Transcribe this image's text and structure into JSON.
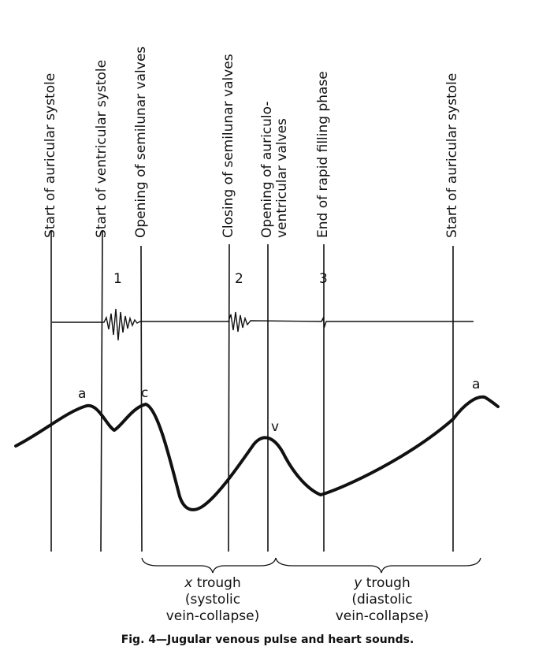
{
  "events": {
    "start_auricular_systole_1": "Start of auricular systole",
    "start_ventricular_systole": "Start of ventricular systole",
    "opening_semilunar": "Opening of semilunar valves",
    "closing_semilunar": "Closing of semilunar valves",
    "opening_av_line1": "Opening of auriculo-",
    "opening_av_line2": "ventricular valves",
    "end_rapid_filling": "End of rapid filling phase",
    "start_auricular_systole_2": "Start of auricular systole"
  },
  "heart_sounds": {
    "s1": "1",
    "s2": "2",
    "s3": "3"
  },
  "waves": {
    "a1": "a",
    "c": "c",
    "v": "v",
    "a2": "a"
  },
  "troughs": {
    "x_symbol": "x",
    "x_word": "trough",
    "x_desc1": "(systolic",
    "x_desc2": "vein-collapse)",
    "y_symbol": "y",
    "y_word": "trough",
    "y_desc1": "(diastolic",
    "y_desc2": "vein-collapse)"
  },
  "caption": "Fig. 4—Jugular venous pulse and heart sounds."
}
